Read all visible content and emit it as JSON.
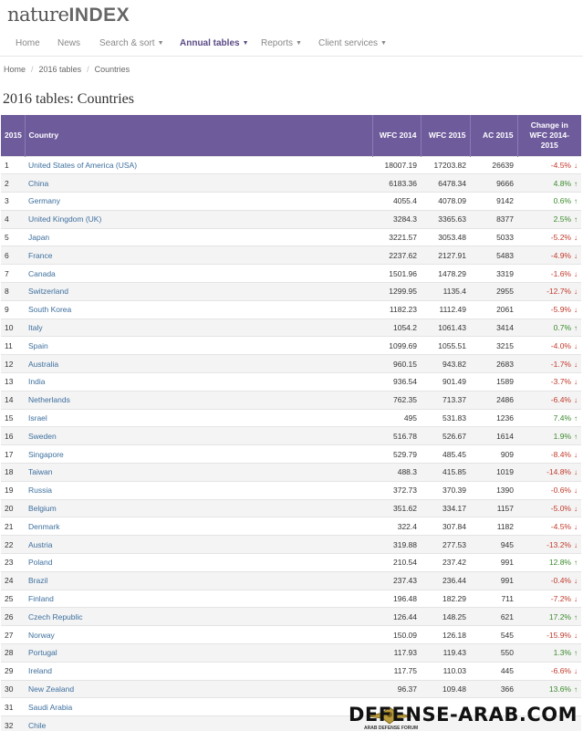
{
  "brand": {
    "logo_left": "nature",
    "logo_right": "INDEX"
  },
  "nav": [
    {
      "label": "Home",
      "dropdown": false,
      "active": false
    },
    {
      "label": "News",
      "dropdown": false,
      "active": false
    },
    {
      "label": "Search & sort",
      "dropdown": true,
      "active": false
    },
    {
      "label": "Annual tables",
      "dropdown": true,
      "active": true
    },
    {
      "label": "Reports",
      "dropdown": true,
      "active": false
    },
    {
      "label": "Client services",
      "dropdown": true,
      "active": false
    }
  ],
  "breadcrumb": [
    "Home",
    "2016 tables",
    "Countries"
  ],
  "page_title": "2016 tables: Countries",
  "table": {
    "headers": {
      "rank": "2015",
      "country": "Country",
      "wfc2014": "WFC 2014",
      "wfc2015": "WFC 2015",
      "ac2015": "AC 2015",
      "change": "Change in WFC 2014-2015"
    },
    "rows": [
      {
        "rank": "1",
        "country": "United States of America (USA)",
        "wfc2014": "18007.19",
        "wfc2015": "17203.82",
        "ac2015": "26639",
        "change": "-4.5%",
        "dir": "down"
      },
      {
        "rank": "2",
        "country": "China",
        "wfc2014": "6183.36",
        "wfc2015": "6478.34",
        "ac2015": "9666",
        "change": "4.8%",
        "dir": "up"
      },
      {
        "rank": "3",
        "country": "Germany",
        "wfc2014": "4055.4",
        "wfc2015": "4078.09",
        "ac2015": "9142",
        "change": "0.6%",
        "dir": "up"
      },
      {
        "rank": "4",
        "country": "United Kingdom (UK)",
        "wfc2014": "3284.3",
        "wfc2015": "3365.63",
        "ac2015": "8377",
        "change": "2.5%",
        "dir": "up"
      },
      {
        "rank": "5",
        "country": "Japan",
        "wfc2014": "3221.57",
        "wfc2015": "3053.48",
        "ac2015": "5033",
        "change": "-5.2%",
        "dir": "down"
      },
      {
        "rank": "6",
        "country": "France",
        "wfc2014": "2237.62",
        "wfc2015": "2127.91",
        "ac2015": "5483",
        "change": "-4.9%",
        "dir": "down"
      },
      {
        "rank": "7",
        "country": "Canada",
        "wfc2014": "1501.96",
        "wfc2015": "1478.29",
        "ac2015": "3319",
        "change": "-1.6%",
        "dir": "down"
      },
      {
        "rank": "8",
        "country": "Switzerland",
        "wfc2014": "1299.95",
        "wfc2015": "1135.4",
        "ac2015": "2955",
        "change": "-12.7%",
        "dir": "down"
      },
      {
        "rank": "9",
        "country": "South Korea",
        "wfc2014": "1182.23",
        "wfc2015": "1112.49",
        "ac2015": "2061",
        "change": "-5.9%",
        "dir": "down"
      },
      {
        "rank": "10",
        "country": "Italy",
        "wfc2014": "1054.2",
        "wfc2015": "1061.43",
        "ac2015": "3414",
        "change": "0.7%",
        "dir": "up"
      },
      {
        "rank": "11",
        "country": "Spain",
        "wfc2014": "1099.69",
        "wfc2015": "1055.51",
        "ac2015": "3215",
        "change": "-4.0%",
        "dir": "down"
      },
      {
        "rank": "12",
        "country": "Australia",
        "wfc2014": "960.15",
        "wfc2015": "943.82",
        "ac2015": "2683",
        "change": "-1.7%",
        "dir": "down"
      },
      {
        "rank": "13",
        "country": "India",
        "wfc2014": "936.54",
        "wfc2015": "901.49",
        "ac2015": "1589",
        "change": "-3.7%",
        "dir": "down"
      },
      {
        "rank": "14",
        "country": "Netherlands",
        "wfc2014": "762.35",
        "wfc2015": "713.37",
        "ac2015": "2486",
        "change": "-6.4%",
        "dir": "down"
      },
      {
        "rank": "15",
        "country": "Israel",
        "wfc2014": "495",
        "wfc2015": "531.83",
        "ac2015": "1236",
        "change": "7.4%",
        "dir": "up"
      },
      {
        "rank": "16",
        "country": "Sweden",
        "wfc2014": "516.78",
        "wfc2015": "526.67",
        "ac2015": "1614",
        "change": "1.9%",
        "dir": "up"
      },
      {
        "rank": "17",
        "country": "Singapore",
        "wfc2014": "529.79",
        "wfc2015": "485.45",
        "ac2015": "909",
        "change": "-8.4%",
        "dir": "down"
      },
      {
        "rank": "18",
        "country": "Taiwan",
        "wfc2014": "488.3",
        "wfc2015": "415.85",
        "ac2015": "1019",
        "change": "-14.8%",
        "dir": "down"
      },
      {
        "rank": "19",
        "country": "Russia",
        "wfc2014": "372.73",
        "wfc2015": "370.39",
        "ac2015": "1390",
        "change": "-0.6%",
        "dir": "down"
      },
      {
        "rank": "20",
        "country": "Belgium",
        "wfc2014": "351.62",
        "wfc2015": "334.17",
        "ac2015": "1157",
        "change": "-5.0%",
        "dir": "down"
      },
      {
        "rank": "21",
        "country": "Denmark",
        "wfc2014": "322.4",
        "wfc2015": "307.84",
        "ac2015": "1182",
        "change": "-4.5%",
        "dir": "down"
      },
      {
        "rank": "22",
        "country": "Austria",
        "wfc2014": "319.88",
        "wfc2015": "277.53",
        "ac2015": "945",
        "change": "-13.2%",
        "dir": "down"
      },
      {
        "rank": "23",
        "country": "Poland",
        "wfc2014": "210.54",
        "wfc2015": "237.42",
        "ac2015": "991",
        "change": "12.8%",
        "dir": "up"
      },
      {
        "rank": "24",
        "country": "Brazil",
        "wfc2014": "237.43",
        "wfc2015": "236.44",
        "ac2015": "991",
        "change": "-0.4%",
        "dir": "down"
      },
      {
        "rank": "25",
        "country": "Finland",
        "wfc2014": "196.48",
        "wfc2015": "182.29",
        "ac2015": "711",
        "change": "-7.2%",
        "dir": "down"
      },
      {
        "rank": "26",
        "country": "Czech Republic",
        "wfc2014": "126.44",
        "wfc2015": "148.25",
        "ac2015": "621",
        "change": "17.2%",
        "dir": "up"
      },
      {
        "rank": "27",
        "country": "Norway",
        "wfc2014": "150.09",
        "wfc2015": "126.18",
        "ac2015": "545",
        "change": "-15.9%",
        "dir": "down"
      },
      {
        "rank": "28",
        "country": "Portugal",
        "wfc2014": "117.93",
        "wfc2015": "119.43",
        "ac2015": "550",
        "change": "1.3%",
        "dir": "up"
      },
      {
        "rank": "29",
        "country": "Ireland",
        "wfc2014": "117.75",
        "wfc2015": "110.03",
        "ac2015": "445",
        "change": "-6.6%",
        "dir": "down"
      },
      {
        "rank": "30",
        "country": "New Zealand",
        "wfc2014": "96.37",
        "wfc2015": "109.48",
        "ac2015": "366",
        "change": "13.6%",
        "dir": "up"
      },
      {
        "rank": "31",
        "country": "Saudi Arabia",
        "wfc2014": "",
        "wfc2015": "",
        "ac2015": "",
        "change": "",
        "dir": ""
      },
      {
        "rank": "32",
        "country": "Chile",
        "wfc2014": "",
        "wfc2015": "",
        "ac2015": "",
        "change": "",
        "dir": ""
      }
    ]
  },
  "watermark": {
    "text": "DEFENSE-ARAB.COM",
    "logo_label": "ARAB DEFENSE FORUM"
  },
  "colors": {
    "header_bg": "#6e5b9c",
    "link": "#3d6f9e",
    "up": "#3a8a2c",
    "down": "#c0392b"
  }
}
